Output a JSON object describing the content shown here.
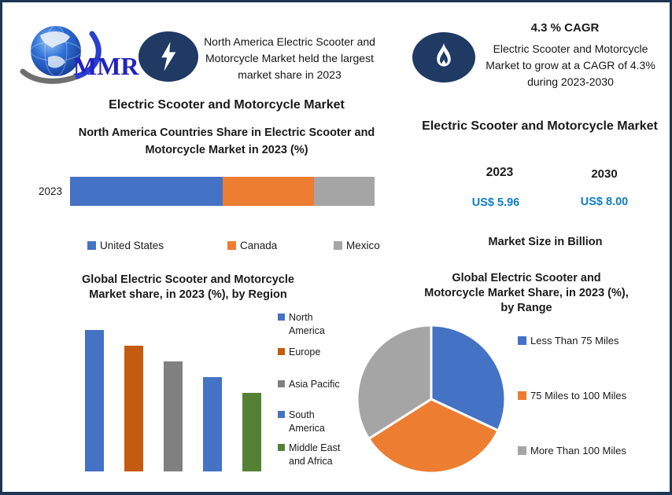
{
  "meta": {
    "border_color": "#1e3553",
    "badge_color": "#1f3a63",
    "accent_blue": "#0f7dc2"
  },
  "logo": {
    "text": "MMR",
    "icon": "globe-logo",
    "text_color": "#2222c2"
  },
  "badge_left": {
    "icon": "lightning-icon",
    "text": "North America Electric Scooter and\nMotorcycle Market held the largest\nmarket share in 2023"
  },
  "badge_right": {
    "icon": "flame-icon",
    "heading": "4.3 % CAGR",
    "text": "Electric Scooter and Motorcycle\nMarket to grow at a CAGR of 4.3%\nduring 2023-2030"
  },
  "left_panel": {
    "title": "Electric Scooter and Motorcycle Market"
  },
  "right_panel": {
    "title": "Electric Scooter and Motorcycle Market",
    "columns": [
      {
        "year": "2023",
        "value": "US$ 5.96"
      },
      {
        "year": "2030",
        "value": "US$ 8.00"
      }
    ],
    "caption": "Market Size in Billion",
    "value_color": "#0f7dc2"
  },
  "chart_data": [
    {
      "id": "na-countries-share",
      "type": "bar",
      "subtype": "horizontal-stacked",
      "title": "North America Countries Share in Electric Scooter and\nMotorcycle Market in 2023 (%)",
      "categories": [
        "2023"
      ],
      "series": [
        {
          "name": "United States",
          "values": [
            50
          ],
          "color": "#4472C4"
        },
        {
          "name": "Canada",
          "values": [
            30
          ],
          "color": "#ED7D31"
        },
        {
          "name": "Mexico",
          "values": [
            20
          ],
          "color": "#A5A5A5"
        }
      ],
      "xlim": [
        0,
        100
      ],
      "grid": false,
      "legend_position": "bottom"
    },
    {
      "id": "global-share-by-region",
      "type": "bar",
      "subtype": "vertical",
      "title": "Global Electric Scooter and Motorcycle\nMarket share, in 2023 (%), by Region",
      "categories": [
        "North America",
        "Europe",
        "Asia Pacific",
        "South America",
        "Middle East and Africa"
      ],
      "values": [
        36,
        32,
        28,
        24,
        20
      ],
      "colors": [
        "#4472C4",
        "#C55A11",
        "#808080",
        "#4472C4",
        "#548235"
      ],
      "grid": false,
      "axis_labels_shown": false,
      "legend_position": "right"
    },
    {
      "id": "global-share-by-range",
      "type": "pie",
      "title": "Global Electric Scooter and\nMotorcycle Market Share, in 2023 (%),\nby Range",
      "labels": [
        "Less Than 75 Miles",
        "75 Miles to 100 Miles",
        "More Than 100 Miles"
      ],
      "values": [
        32,
        34,
        34
      ],
      "colors": [
        "#4472C4",
        "#ED7D31",
        "#A5A5A5"
      ],
      "start_angle_deg": 0,
      "legend_position": "right"
    }
  ]
}
